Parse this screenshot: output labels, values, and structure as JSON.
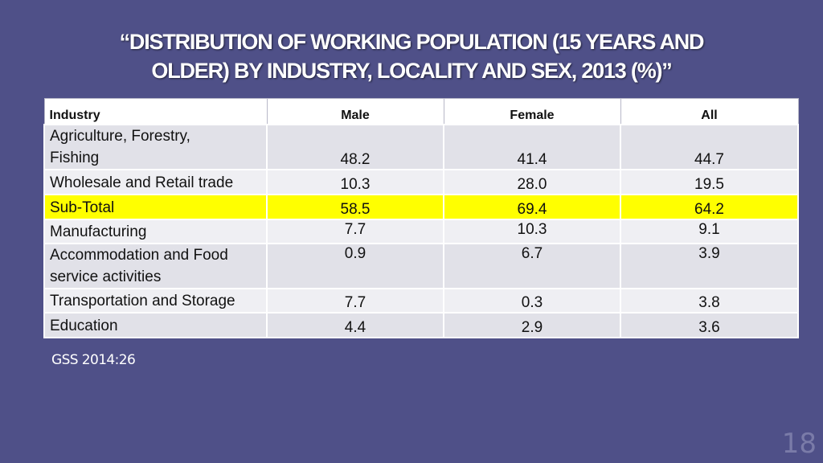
{
  "slide": {
    "title_line1": "“DISTRIBUTION OF WORKING POPULATION (15 YEARS AND",
    "title_line2": "OLDER) BY INDUSTRY, LOCALITY AND SEX, 2013 (%)”",
    "source": "GSS 2014:26",
    "page_number": "18",
    "highlight_color": "#ffff00",
    "background_color": "#4f5088"
  },
  "table": {
    "headers": [
      "Industry",
      "Male",
      "Female",
      "All"
    ],
    "rows": [
      {
        "industry_line1": "Agriculture, Forestry,",
        "industry_line2": "Fishing",
        "male": "48.2",
        "female": "41.4",
        "all": "44.7"
      },
      {
        "industry": "Wholesale and Retail trade",
        "male": "10.3",
        "female": "28.0",
        "all": "19.5"
      },
      {
        "industry": "Sub-Total",
        "male": "58.5",
        "female": "69.4",
        "all": "64.2"
      },
      {
        "industry": "Manufacturing",
        "male": "7.7",
        "female": "10.3",
        "all": "9.1"
      },
      {
        "industry_line1": "Accommodation and Food",
        "industry_line2": "service activities",
        "male": "0.9",
        "female": "6.7",
        "all": "3.9"
      },
      {
        "industry": "Transportation and Storage",
        "male": "7.7",
        "female": "0.3",
        "all": "3.8"
      },
      {
        "industry": "Education",
        "male": "4.4",
        "female": "2.9",
        "all": "3.6"
      }
    ]
  }
}
